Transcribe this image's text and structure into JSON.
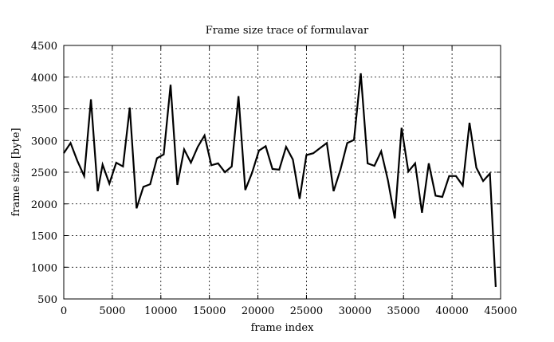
{
  "chart_data": {
    "type": "line",
    "title": "Frame size trace of formulavar",
    "xlabel": "frame index",
    "ylabel": "frame size [byte]",
    "xlim": [
      0,
      45000
    ],
    "ylim": [
      500,
      4500
    ],
    "xticks": [
      0,
      5000,
      10000,
      15000,
      20000,
      25000,
      30000,
      35000,
      40000,
      45000
    ],
    "yticks": [
      500,
      1000,
      1500,
      2000,
      2500,
      3000,
      3500,
      4000,
      4500
    ],
    "grid": true,
    "series": [
      {
        "x": [
          0,
          700,
          1400,
          2100,
          2800,
          3500,
          4000,
          4700,
          5400,
          6100,
          6800,
          7500,
          8200,
          8900,
          9600,
          10300,
          11000,
          11700,
          12400,
          13100,
          13800,
          14500,
          15200,
          15900,
          16600,
          17300,
          18000,
          18700,
          19400,
          20100,
          20800,
          21500,
          22200,
          22900,
          23600,
          24300,
          25000,
          25700,
          26400,
          27100,
          27800,
          28500,
          29200,
          29900,
          30600,
          31300,
          32000,
          32700,
          33400,
          34100,
          34800,
          35500,
          36200,
          36900,
          37600,
          38300,
          39000,
          39700,
          40400,
          41100,
          41800,
          42500,
          43200,
          43900,
          44500
        ],
        "y": [
          2800,
          2960,
          2680,
          2440,
          3650,
          2200,
          2620,
          2320,
          2650,
          2590,
          3520,
          1930,
          2270,
          2310,
          2720,
          2780,
          3880,
          2300,
          2860,
          2650,
          2900,
          3080,
          2610,
          2640,
          2500,
          2590,
          3700,
          2220,
          2490,
          2840,
          2910,
          2550,
          2540,
          2900,
          2700,
          2080,
          2770,
          2800,
          2880,
          2960,
          2200,
          2540,
          2960,
          3010,
          4060,
          2640,
          2600,
          2830,
          2370,
          1770,
          3200,
          2510,
          2640,
          1860,
          2640,
          2130,
          2110,
          2440,
          2440,
          2290,
          3280,
          2570,
          2360,
          2480,
          690
        ]
      }
    ]
  }
}
